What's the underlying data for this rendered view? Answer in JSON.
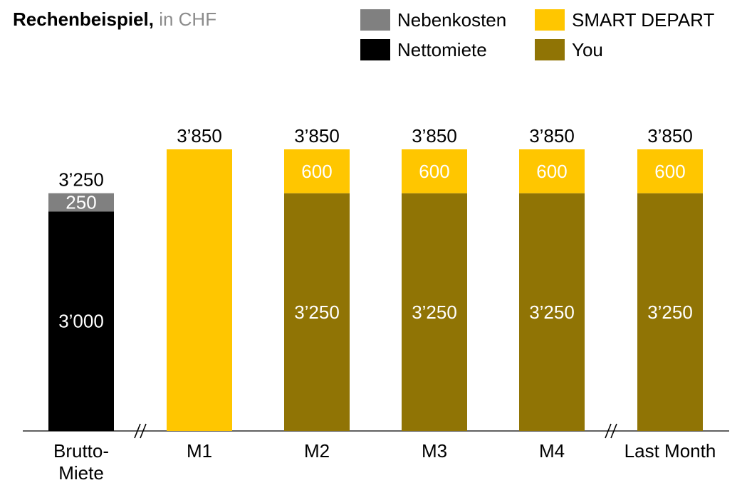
{
  "title": {
    "main": "Rechenbeispiel,",
    "sub": " in CHF"
  },
  "legend": [
    {
      "label": "Nebenkosten",
      "color": "#808080"
    },
    {
      "label": "SMART DEPART",
      "color": "#FFC600"
    },
    {
      "label": "Nettomiete",
      "color": "#000000"
    },
    {
      "label": "You",
      "color": "#907405"
    }
  ],
  "chart_data": {
    "type": "bar",
    "stacked": true,
    "title": "Rechenbeispiel, in CHF",
    "categories": [
      "Brutto-\nMiete",
      "M1",
      "M2",
      "M3",
      "M4",
      "Last Month"
    ],
    "category_lines": [
      [
        "Brutto-",
        "Miete"
      ],
      [
        "M1"
      ],
      [
        "M2"
      ],
      [
        "M3"
      ],
      [
        "M4"
      ],
      [
        "Last Month"
      ]
    ],
    "series": [
      {
        "name": "Nettomiete",
        "color": "#000000",
        "values": [
          3000,
          0,
          0,
          0,
          0,
          0
        ],
        "labels": [
          "3’000",
          "",
          "",
          "",
          "",
          ""
        ]
      },
      {
        "name": "You",
        "color": "#907405",
        "values": [
          0,
          0,
          3250,
          3250,
          3250,
          3250
        ],
        "labels": [
          "",
          "",
          "3’250",
          "3’250",
          "3’250",
          "3’250"
        ]
      },
      {
        "name": "Nebenkosten",
        "color": "#808080",
        "values": [
          250,
          0,
          0,
          0,
          0,
          0
        ],
        "labels": [
          "250",
          "",
          "",
          "",
          "",
          ""
        ]
      },
      {
        "name": "SMART DEPART",
        "color": "#FFC600",
        "values": [
          0,
          3850,
          600,
          600,
          600,
          600
        ],
        "labels": [
          "",
          "",
          "600",
          "600",
          "600",
          "600"
        ]
      }
    ],
    "totals": [
      3250,
      3850,
      3850,
      3850,
      3850,
      3850
    ],
    "total_labels": [
      "3’250",
      "3’850",
      "3’850",
      "3’850",
      "3’850",
      "3’850"
    ],
    "axis_breaks_after": [
      0,
      4
    ],
    "xlabel": "",
    "ylabel": "",
    "ylim": [
      0,
      3850
    ],
    "grid": false,
    "legend_position": "top-right"
  }
}
